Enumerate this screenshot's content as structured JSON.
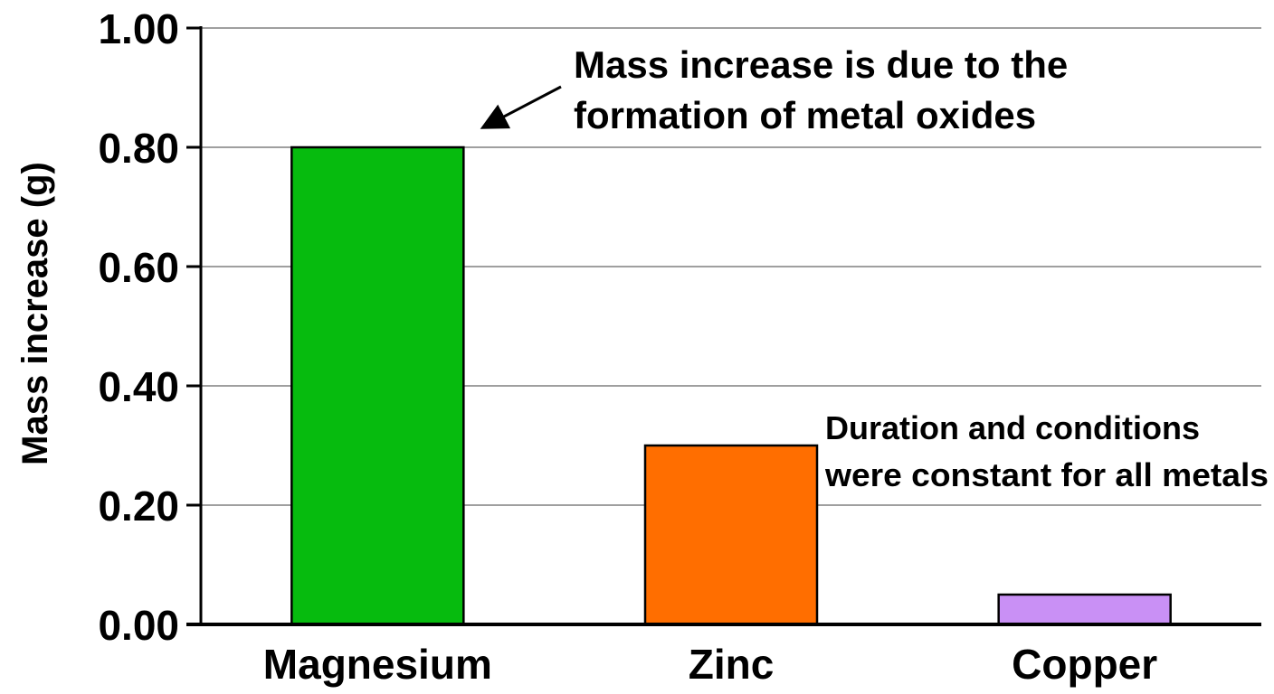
{
  "chart_data": {
    "type": "bar",
    "categories": [
      "Magnesium",
      "Zinc",
      "Copper"
    ],
    "values": [
      0.8,
      0.3,
      0.05
    ],
    "colors": [
      "#06bb0e",
      "#ff6e00",
      "#c990f5"
    ],
    "title": "",
    "xlabel": "",
    "ylabel": "Mass increase (g)",
    "ylim": [
      0,
      1.0
    ],
    "yticks": [
      0,
      0.2,
      0.4,
      0.6,
      0.8,
      1.0
    ],
    "ytick_labels": [
      "0.00",
      "0.20",
      "0.40",
      "0.60",
      "0.80",
      "1.00"
    ],
    "grid": true,
    "legend": "none",
    "annotations": [
      {
        "id": "oxide_note",
        "lines": [
          "Mass increase is due to the",
          "formation of metal oxides"
        ],
        "arrow_to_category": "Magnesium"
      },
      {
        "id": "conditions_note",
        "lines": [
          "Duration and conditions",
          "were constant for all metals"
        ]
      }
    ]
  }
}
